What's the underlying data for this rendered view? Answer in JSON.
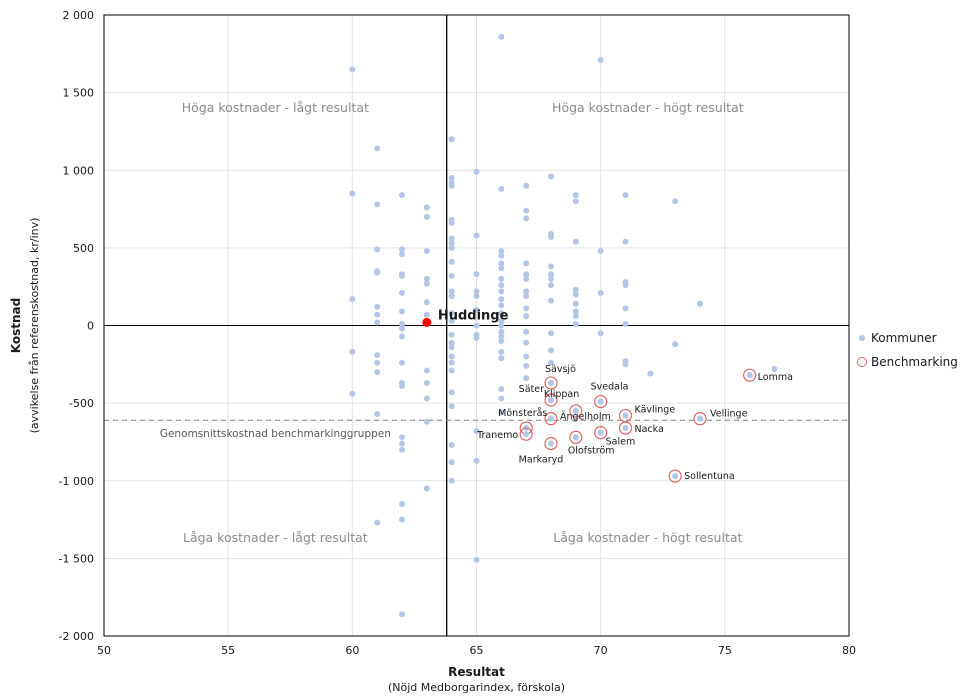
{
  "chart_data": {
    "type": "scatter",
    "xlabel": "Resultat",
    "xlabel_sub": "(Nöjd Medborgarindex, förskola)",
    "ylabel": "Kostnad",
    "ylabel_sub": "(avvikelse från referenskostnad, kr/inv)",
    "xlim": [
      50,
      80
    ],
    "ylim": [
      -2000,
      2000
    ],
    "x_ticks": [
      50,
      55,
      60,
      65,
      70,
      75,
      80
    ],
    "x_tick_labels": [
      "50",
      "55",
      "60",
      "65",
      "70",
      "75",
      "80"
    ],
    "y_ticks": [
      2000,
      1500,
      1000,
      500,
      0,
      -500,
      -1000,
      -1500,
      -2000
    ],
    "y_tick_labels": [
      "2 000",
      "1 500",
      "1 000",
      "500",
      "0",
      "-500",
      "-1 000",
      "-1 500",
      "-2 000"
    ],
    "grid": true,
    "colors": {
      "kommuner": "#b4c6e7",
      "benchmarking": "#e06666",
      "huddinge": "#ff0000"
    },
    "reference_lines": {
      "vertical_x": 63.8,
      "horizontal_y": 0,
      "average_cost_y": -610,
      "average_cost_label": "Genomsnittskostnad benchmarkinggruppen"
    },
    "quadrant_labels": {
      "top_left": "Höga kostnader - lågt resultat",
      "top_right": "Höga kostnader - högt resultat",
      "bottom_left": "Låga kostnader - lågt resultat",
      "bottom_right": "Låga kostnader - högt resultat"
    },
    "legend": {
      "position": "right",
      "items": [
        "Kommuner",
        "Benchmarking"
      ]
    },
    "series": [
      {
        "name": "Kommuner",
        "points": [
          [
            60,
            1650
          ],
          [
            60,
            850
          ],
          [
            60,
            170
          ],
          [
            60,
            -170
          ],
          [
            60,
            -440
          ],
          [
            61,
            1140
          ],
          [
            61,
            780
          ],
          [
            61,
            490
          ],
          [
            61,
            350
          ],
          [
            61,
            340
          ],
          [
            61,
            120
          ],
          [
            61,
            70
          ],
          [
            61,
            20
          ],
          [
            61,
            -190
          ],
          [
            61,
            -240
          ],
          [
            61,
            -300
          ],
          [
            61,
            -570
          ],
          [
            61,
            -1270
          ],
          [
            62,
            840
          ],
          [
            62,
            490
          ],
          [
            62,
            460
          ],
          [
            62,
            330
          ],
          [
            62,
            320
          ],
          [
            62,
            210
          ],
          [
            62,
            90
          ],
          [
            62,
            10
          ],
          [
            62,
            -20
          ],
          [
            62,
            -70
          ],
          [
            62,
            -240
          ],
          [
            62,
            -370
          ],
          [
            62,
            -390
          ],
          [
            62,
            -720
          ],
          [
            62,
            -760
          ],
          [
            62,
            -800
          ],
          [
            62,
            -1150
          ],
          [
            62,
            -1250
          ],
          [
            62,
            -1860
          ],
          [
            63,
            760
          ],
          [
            63,
            700
          ],
          [
            63,
            480
          ],
          [
            63,
            300
          ],
          [
            63,
            270
          ],
          [
            63,
            150
          ],
          [
            63,
            70
          ],
          [
            63,
            -290
          ],
          [
            63,
            -370
          ],
          [
            63,
            -470
          ],
          [
            63,
            -620
          ],
          [
            63,
            -1050
          ],
          [
            64,
            1200
          ],
          [
            64,
            950
          ],
          [
            64,
            920
          ],
          [
            64,
            900
          ],
          [
            64,
            680
          ],
          [
            64,
            660
          ],
          [
            64,
            560
          ],
          [
            64,
            530
          ],
          [
            64,
            500
          ],
          [
            64,
            410
          ],
          [
            64,
            320
          ],
          [
            64,
            220
          ],
          [
            64,
            190
          ],
          [
            64,
            80
          ],
          [
            64,
            30
          ],
          [
            64,
            -60
          ],
          [
            64,
            -110
          ],
          [
            64,
            -140
          ],
          [
            64,
            -200
          ],
          [
            64,
            -240
          ],
          [
            64,
            -290
          ],
          [
            64,
            -430
          ],
          [
            64,
            -520
          ],
          [
            64,
            -770
          ],
          [
            64,
            -880
          ],
          [
            64,
            -1000
          ],
          [
            65,
            990
          ],
          [
            65,
            580
          ],
          [
            65,
            330
          ],
          [
            65,
            220
          ],
          [
            65,
            190
          ],
          [
            65,
            100
          ],
          [
            65,
            0
          ],
          [
            65,
            -60
          ],
          [
            65,
            -80
          ],
          [
            65,
            -680
          ],
          [
            65,
            -870
          ],
          [
            65,
            -1510
          ],
          [
            66,
            1860
          ],
          [
            66,
            880
          ],
          [
            66,
            480
          ],
          [
            66,
            450
          ],
          [
            66,
            400
          ],
          [
            66,
            370
          ],
          [
            66,
            300
          ],
          [
            66,
            260
          ],
          [
            66,
            220
          ],
          [
            66,
            170
          ],
          [
            66,
            130
          ],
          [
            66,
            80
          ],
          [
            66,
            30
          ],
          [
            66,
            0
          ],
          [
            66,
            -40
          ],
          [
            66,
            -70
          ],
          [
            66,
            -100
          ],
          [
            66,
            -170
          ],
          [
            66,
            -210
          ],
          [
            66,
            -410
          ],
          [
            66,
            -470
          ],
          [
            66,
            -560
          ],
          [
            67,
            900
          ],
          [
            67,
            740
          ],
          [
            67,
            690
          ],
          [
            67,
            400
          ],
          [
            67,
            330
          ],
          [
            67,
            300
          ],
          [
            67,
            220
          ],
          [
            67,
            190
          ],
          [
            67,
            110
          ],
          [
            67,
            60
          ],
          [
            67,
            -40
          ],
          [
            67,
            -110
          ],
          [
            67,
            -200
          ],
          [
            67,
            -260
          ],
          [
            67,
            -340
          ],
          [
            68,
            960
          ],
          [
            68,
            590
          ],
          [
            68,
            570
          ],
          [
            68,
            380
          ],
          [
            68,
            330
          ],
          [
            68,
            300
          ],
          [
            68,
            260
          ],
          [
            68,
            160
          ],
          [
            68,
            -50
          ],
          [
            68,
            -160
          ],
          [
            68,
            -240
          ],
          [
            68,
            -370
          ],
          [
            68,
            -480
          ],
          [
            68,
            -600
          ],
          [
            68,
            -760
          ],
          [
            69,
            840
          ],
          [
            69,
            800
          ],
          [
            69,
            540
          ],
          [
            69,
            230
          ],
          [
            69,
            200
          ],
          [
            69,
            140
          ],
          [
            69,
            90
          ],
          [
            69,
            60
          ],
          [
            69,
            10
          ],
          [
            69,
            -550
          ],
          [
            69,
            -720
          ],
          [
            70,
            1710
          ],
          [
            70,
            480
          ],
          [
            70,
            210
          ],
          [
            70,
            -50
          ],
          [
            70,
            -490
          ],
          [
            70,
            -690
          ],
          [
            71,
            840
          ],
          [
            71,
            540
          ],
          [
            71,
            280
          ],
          [
            71,
            260
          ],
          [
            71,
            110
          ],
          [
            71,
            10
          ],
          [
            71,
            -230
          ],
          [
            71,
            -250
          ],
          [
            71,
            -580
          ],
          [
            71,
            -660
          ],
          [
            72,
            -310
          ],
          [
            73,
            800
          ],
          [
            73,
            -120
          ],
          [
            73,
            -970
          ],
          [
            74,
            140
          ],
          [
            74,
            -600
          ],
          [
            76,
            -320
          ],
          [
            77,
            -280
          ]
        ]
      },
      {
        "name": "Benchmarking",
        "points": [
          {
            "x": 68,
            "y": -370,
            "label": "Sävsjö"
          },
          {
            "x": 68,
            "y": -480,
            "label": "Säter"
          },
          {
            "x": 70,
            "y": -490,
            "label": "Svedala"
          },
          {
            "x": 69,
            "y": -550,
            "label": "Klippan"
          },
          {
            "x": 68,
            "y": -600,
            "label": "Ängelholm"
          },
          {
            "x": 67,
            "y": -660,
            "label": "Mönsterås"
          },
          {
            "x": 67,
            "y": -700,
            "label": "Tranemo"
          },
          {
            "x": 68,
            "y": -760,
            "label": "Markaryd"
          },
          {
            "x": 69,
            "y": -720,
            "label": "Olofström"
          },
          {
            "x": 70,
            "y": -690,
            "label": "Salem"
          },
          {
            "x": 71,
            "y": -580,
            "label": "Kävlinge"
          },
          {
            "x": 71,
            "y": -660,
            "label": "Nacka"
          },
          {
            "x": 74,
            "y": -600,
            "label": "Vellinge"
          },
          {
            "x": 76,
            "y": -320,
            "label": "Lomma"
          },
          {
            "x": 73,
            "y": -970,
            "label": "Sollentuna"
          }
        ]
      },
      {
        "name": "Huddinge",
        "points": [
          {
            "x": 63,
            "y": 20,
            "label": "Huddinge"
          }
        ]
      }
    ]
  }
}
